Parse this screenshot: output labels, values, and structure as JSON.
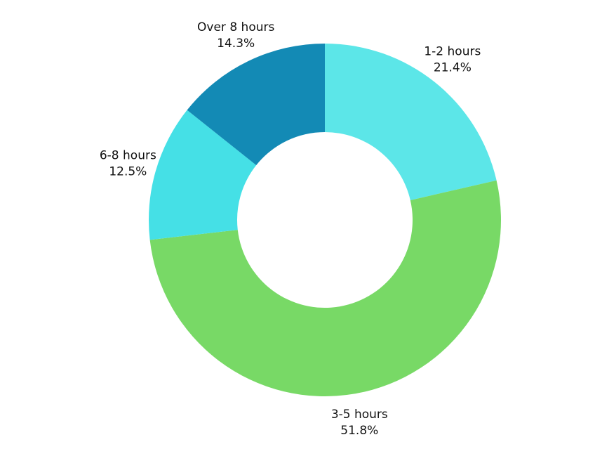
{
  "chart_data": {
    "type": "donut",
    "categories": [
      "1-2 hours",
      "3-5 hours",
      "6-8 hours",
      "Over 8 hours"
    ],
    "values": [
      21.4,
      51.8,
      12.5,
      14.3
    ],
    "value_labels": [
      "21.4%",
      "51.8%",
      "12.5%",
      "14.3%"
    ],
    "colors": [
      "#5ce6e8",
      "#78d966",
      "#45e0e6",
      "#138ab5"
    ]
  }
}
